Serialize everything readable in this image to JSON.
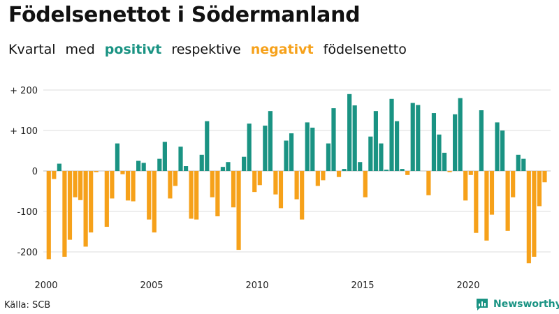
{
  "title": "Födelsenettot i Södermanland",
  "subtitle": {
    "prefix": "Kvartal",
    "med": "med",
    "positive_word": "positivt",
    "respektive": "respektive",
    "negative_word": "negativt",
    "suffix": "födelsenetto"
  },
  "source": "Källa: SCB",
  "brand": {
    "name": "Newsworthy",
    "logo_icon": "bar-chart-speech-bubble-icon"
  },
  "colors": {
    "positive": "#1a9383",
    "negative": "#f6a11a",
    "grid": "#dddddd",
    "axis": "#bbbbbb"
  },
  "chart_data": {
    "type": "bar",
    "title": "Födelsenettot i Södermanland",
    "xlabel": "",
    "ylabel": "",
    "ylim": [
      -240,
      210
    ],
    "xlim": [
      2000,
      2024
    ],
    "y_ticks": [
      200,
      100,
      0,
      -100,
      -200
    ],
    "y_tick_labels": [
      "+ 200",
      "+ 100",
      "0",
      "-100",
      "-200"
    ],
    "x_ticks": [
      2000,
      2005,
      2010,
      2015,
      2020
    ],
    "x_tick_labels": [
      "2000",
      "2005",
      "2010",
      "2015",
      "2020"
    ],
    "grid": true,
    "start_year": 2000,
    "periods_per_year": 4,
    "values": [
      -218,
      -20,
      18,
      -212,
      -170,
      -65,
      -72,
      -187,
      -152,
      -3,
      0,
      -138,
      -68,
      68,
      -8,
      -73,
      -75,
      25,
      20,
      -120,
      -152,
      30,
      72,
      -68,
      -37,
      60,
      12,
      -118,
      -120,
      40,
      123,
      -65,
      -112,
      10,
      22,
      -90,
      -195,
      35,
      117,
      -52,
      -35,
      112,
      148,
      -58,
      -92,
      75,
      93,
      -70,
      -120,
      120,
      107,
      -37,
      -23,
      68,
      155,
      -15,
      5,
      190,
      162,
      22,
      -65,
      85,
      148,
      68,
      3,
      178,
      123,
      5,
      -10,
      168,
      163,
      0,
      -60,
      143,
      90,
      45,
      -3,
      140,
      180,
      -73,
      -10,
      -153,
      150,
      -172,
      -108,
      120,
      100,
      -148,
      -65,
      40,
      30,
      -228,
      -212,
      -87,
      -28
    ]
  }
}
